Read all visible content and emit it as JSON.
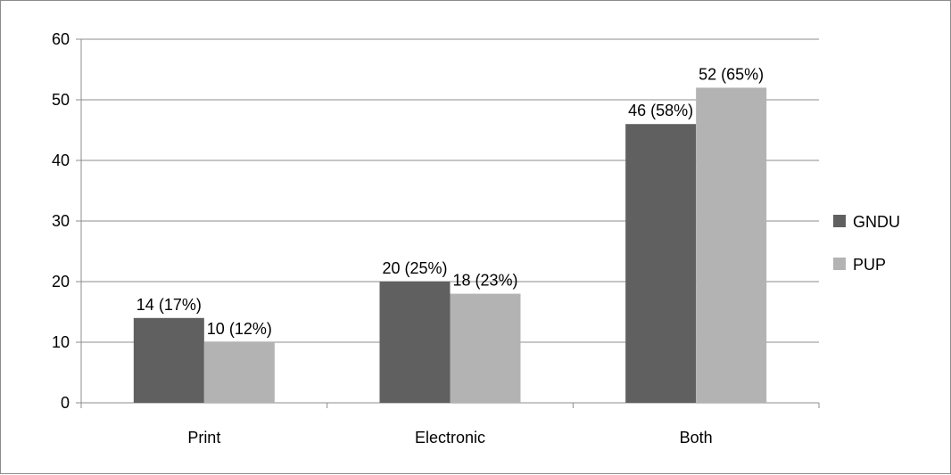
{
  "chart_data": {
    "type": "bar",
    "title": "",
    "xlabel": "",
    "ylabel": "",
    "categories": [
      "Print",
      "Electronic",
      "Both"
    ],
    "series": [
      {
        "name": "GNDU",
        "color": "#606060",
        "values": [
          14,
          20,
          46
        ],
        "labels": [
          "14 (17%)",
          "20 (25%)",
          "46 (58%)"
        ]
      },
      {
        "name": "PUP",
        "color": "#b3b3b3",
        "values": [
          10,
          18,
          52
        ],
        "labels": [
          "10 (12%)",
          "18 (23%)",
          "52 (65%)"
        ]
      }
    ],
    "ylim": [
      0,
      60
    ],
    "yticks": [
      0,
      10,
      20,
      30,
      40,
      50,
      60
    ],
    "grid": true,
    "legend_position": "right"
  }
}
